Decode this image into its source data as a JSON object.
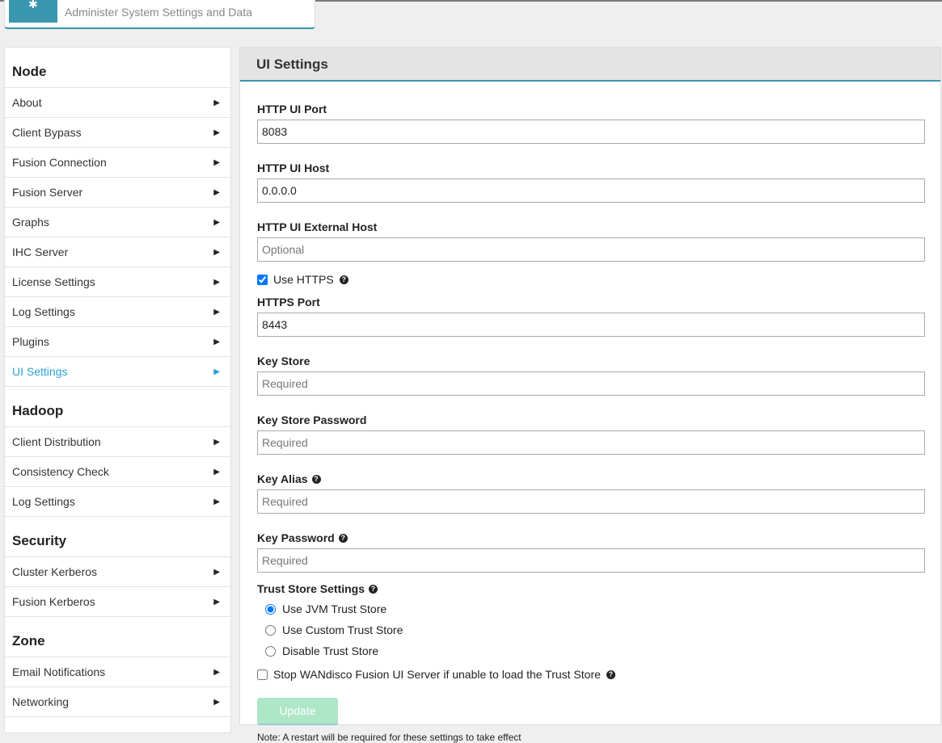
{
  "header": {
    "subtitle": "Administer System Settings and Data",
    "logo_icon": "gear-icon"
  },
  "sidebar": {
    "sections": [
      {
        "title": "Node",
        "items": [
          "About",
          "Client Bypass",
          "Fusion Connection",
          "Fusion Server",
          "Graphs",
          "IHC Server",
          "License Settings",
          "Log Settings",
          "Plugins",
          "UI Settings"
        ]
      },
      {
        "title": "Hadoop",
        "items": [
          "Client Distribution",
          "Consistency Check",
          "Log Settings"
        ]
      },
      {
        "title": "Security",
        "items": [
          "Cluster Kerberos",
          "Fusion Kerberos"
        ]
      },
      {
        "title": "Zone",
        "items": [
          "Email Notifications",
          "Networking",
          ""
        ]
      }
    ],
    "active": "UI Settings",
    "active_color": "#2a9fd6"
  },
  "main": {
    "title": "UI Settings",
    "fields": {
      "http_port": {
        "label": "HTTP UI Port",
        "value": "8083"
      },
      "http_host": {
        "label": "HTTP UI Host",
        "value": "0.0.0.0"
      },
      "ext_host": {
        "label": "HTTP UI External Host",
        "placeholder": "Optional"
      },
      "use_https": {
        "label": "Use HTTPS",
        "checked": true
      },
      "https_port": {
        "label": "HTTPS Port",
        "value": "8443"
      },
      "key_store": {
        "label": "Key Store",
        "placeholder": "Required"
      },
      "key_store_pw": {
        "label": "Key Store Password",
        "placeholder": "Required"
      },
      "key_alias": {
        "label": "Key Alias",
        "placeholder": "Required"
      },
      "key_pw": {
        "label": "Key Password",
        "placeholder": "Required"
      }
    },
    "trust": {
      "label": "Trust Store Settings",
      "options": [
        "Use JVM Trust Store",
        "Use Custom Trust Store",
        "Disable Trust Store"
      ],
      "selected": "Use JVM Trust Store"
    },
    "stop_label": "Stop WANdisco Fusion UI Server if unable to load the Trust Store",
    "stop_checked": false,
    "update_label": "Update",
    "note": "Note: A restart will be required for these settings to take effect",
    "accent": "#3a96ae"
  }
}
